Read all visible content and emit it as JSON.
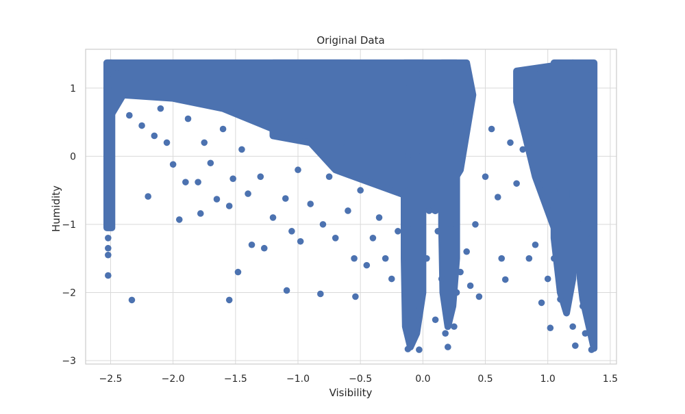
{
  "chart_data": {
    "type": "scatter",
    "title": "Original Data",
    "xlabel": "Visibility",
    "ylabel": "Humidity",
    "xlim": [
      -2.7,
      1.55
    ],
    "ylim": [
      -3.05,
      1.57
    ],
    "xticks": [
      -2.5,
      -2.0,
      -1.5,
      -1.0,
      -0.5,
      0.0,
      0.5,
      1.0,
      1.5
    ],
    "xtick_labels": [
      "−2.5",
      "−2.0",
      "−1.5",
      "−1.0",
      "−0.5",
      "0.0",
      "0.5",
      "1.0",
      "1.5"
    ],
    "yticks": [
      1,
      0,
      -1,
      -2,
      -3
    ],
    "ytick_labels": [
      "1",
      "0",
      "−1",
      "−2",
      "−3"
    ],
    "grid": true,
    "marker_color": "#4c72b0",
    "series": [
      {
        "points": [
          [
            -2.52,
            1.35
          ],
          [
            -2.52,
            1.2
          ],
          [
            -2.52,
            1.0
          ],
          [
            -2.52,
            0.8
          ],
          [
            -2.52,
            0.6
          ],
          [
            -2.52,
            0.4
          ],
          [
            -2.52,
            0.2
          ],
          [
            -2.52,
            0.0
          ],
          [
            -2.52,
            -0.2
          ],
          [
            -2.52,
            -0.4
          ],
          [
            -2.52,
            -0.6
          ],
          [
            -2.52,
            -0.8
          ],
          [
            -2.52,
            -1.0
          ],
          [
            -2.52,
            -1.2
          ],
          [
            -2.52,
            -1.35
          ],
          [
            -2.52,
            -1.45
          ],
          [
            -2.52,
            -1.75
          ],
          [
            -2.45,
            1.3
          ],
          [
            -2.4,
            0.9
          ],
          [
            -2.35,
            0.6
          ],
          [
            -2.33,
            -2.11
          ],
          [
            -2.3,
            1.1
          ],
          [
            -2.25,
            0.45
          ],
          [
            -2.2,
            -0.59
          ],
          [
            -2.15,
            0.3
          ],
          [
            -2.1,
            0.7
          ],
          [
            -2.05,
            0.2
          ],
          [
            -2.0,
            -0.12
          ],
          [
            -1.95,
            -0.93
          ],
          [
            -1.9,
            -0.38
          ],
          [
            -1.88,
            0.55
          ],
          [
            -1.8,
            -0.38
          ],
          [
            -1.78,
            -0.84
          ],
          [
            -1.75,
            0.2
          ],
          [
            -1.7,
            -0.1
          ],
          [
            -1.65,
            -0.63
          ],
          [
            -1.6,
            0.4
          ],
          [
            -1.55,
            -0.73
          ],
          [
            -1.55,
            -2.11
          ],
          [
            -1.52,
            -0.33
          ],
          [
            -1.48,
            -1.7
          ],
          [
            -1.45,
            0.1
          ],
          [
            -1.4,
            -0.55
          ],
          [
            -1.37,
            -1.3
          ],
          [
            -1.3,
            -0.3
          ],
          [
            -1.27,
            -1.35
          ],
          [
            -1.2,
            -0.9
          ],
          [
            -1.15,
            0.5
          ],
          [
            -1.1,
            -0.62
          ],
          [
            -1.09,
            -1.97
          ],
          [
            -1.05,
            -1.1
          ],
          [
            -1.0,
            -0.2
          ],
          [
            -0.98,
            -1.25
          ],
          [
            -0.95,
            0.3
          ],
          [
            -0.9,
            -0.7
          ],
          [
            -0.82,
            -2.02
          ],
          [
            -0.8,
            -1.0
          ],
          [
            -0.75,
            -0.3
          ],
          [
            -0.7,
            -1.2
          ],
          [
            -0.65,
            0.2
          ],
          [
            -0.6,
            -0.8
          ],
          [
            -0.55,
            -1.5
          ],
          [
            -0.54,
            -2.06
          ],
          [
            -0.5,
            -0.5
          ],
          [
            -0.45,
            -1.6
          ],
          [
            -0.4,
            -1.2
          ],
          [
            -0.35,
            -0.9
          ],
          [
            -0.3,
            -1.5
          ],
          [
            -0.25,
            -1.8
          ],
          [
            -0.2,
            -1.1
          ],
          [
            -0.12,
            1.0
          ],
          [
            -0.12,
            0.5
          ],
          [
            -0.12,
            0.0
          ],
          [
            -0.12,
            -0.5
          ],
          [
            -0.12,
            -1.0
          ],
          [
            -0.12,
            -1.5
          ],
          [
            -0.12,
            -2.0
          ],
          [
            -0.12,
            -2.4
          ],
          [
            -0.12,
            -2.83
          ],
          [
            -0.07,
            -2.2
          ],
          [
            -0.07,
            -2.6
          ],
          [
            -0.04,
            1.2
          ],
          [
            -0.04,
            0.0
          ],
          [
            -0.04,
            -1.2
          ],
          [
            -0.04,
            -2.4
          ],
          [
            -0.03,
            -2.84
          ],
          [
            0.0,
            -2.0
          ],
          [
            0.03,
            -1.5
          ],
          [
            0.05,
            -0.8
          ],
          [
            0.1,
            -2.4
          ],
          [
            0.12,
            -1.1
          ],
          [
            0.15,
            -1.8
          ],
          [
            0.18,
            -2.6
          ],
          [
            0.2,
            -2.8
          ],
          [
            0.22,
            0.5
          ],
          [
            0.22,
            -1.0
          ],
          [
            0.22,
            -2.2
          ],
          [
            0.25,
            -2.5
          ],
          [
            0.27,
            -2.0
          ],
          [
            0.3,
            -1.7
          ],
          [
            0.35,
            -1.4
          ],
          [
            0.38,
            -1.9
          ],
          [
            0.42,
            -1.0
          ],
          [
            0.45,
            -2.06
          ],
          [
            0.5,
            -0.3
          ],
          [
            0.55,
            0.4
          ],
          [
            0.6,
            -0.6
          ],
          [
            0.63,
            -1.5
          ],
          [
            0.66,
            -1.81
          ],
          [
            0.7,
            0.2
          ],
          [
            0.75,
            -0.4
          ],
          [
            0.8,
            0.1
          ],
          [
            0.85,
            -1.5
          ],
          [
            0.9,
            -1.3
          ],
          [
            0.95,
            -2.15
          ],
          [
            1.0,
            -1.8
          ],
          [
            1.02,
            -2.52
          ],
          [
            1.05,
            0.5
          ],
          [
            1.05,
            -0.5
          ],
          [
            1.05,
            -1.5
          ],
          [
            1.1,
            -2.1
          ],
          [
            1.15,
            -2.3
          ],
          [
            1.2,
            -2.5
          ],
          [
            1.22,
            -2.78
          ],
          [
            1.25,
            -1.0
          ],
          [
            1.28,
            -2.2
          ],
          [
            1.3,
            -2.6
          ],
          [
            1.35,
            1.2
          ],
          [
            1.35,
            0.6
          ],
          [
            1.35,
            0.0
          ],
          [
            1.35,
            -0.6
          ],
          [
            1.35,
            -1.2
          ],
          [
            1.35,
            -1.8
          ],
          [
            1.35,
            -2.4
          ],
          [
            1.35,
            -2.84
          ]
        ]
      }
    ]
  }
}
